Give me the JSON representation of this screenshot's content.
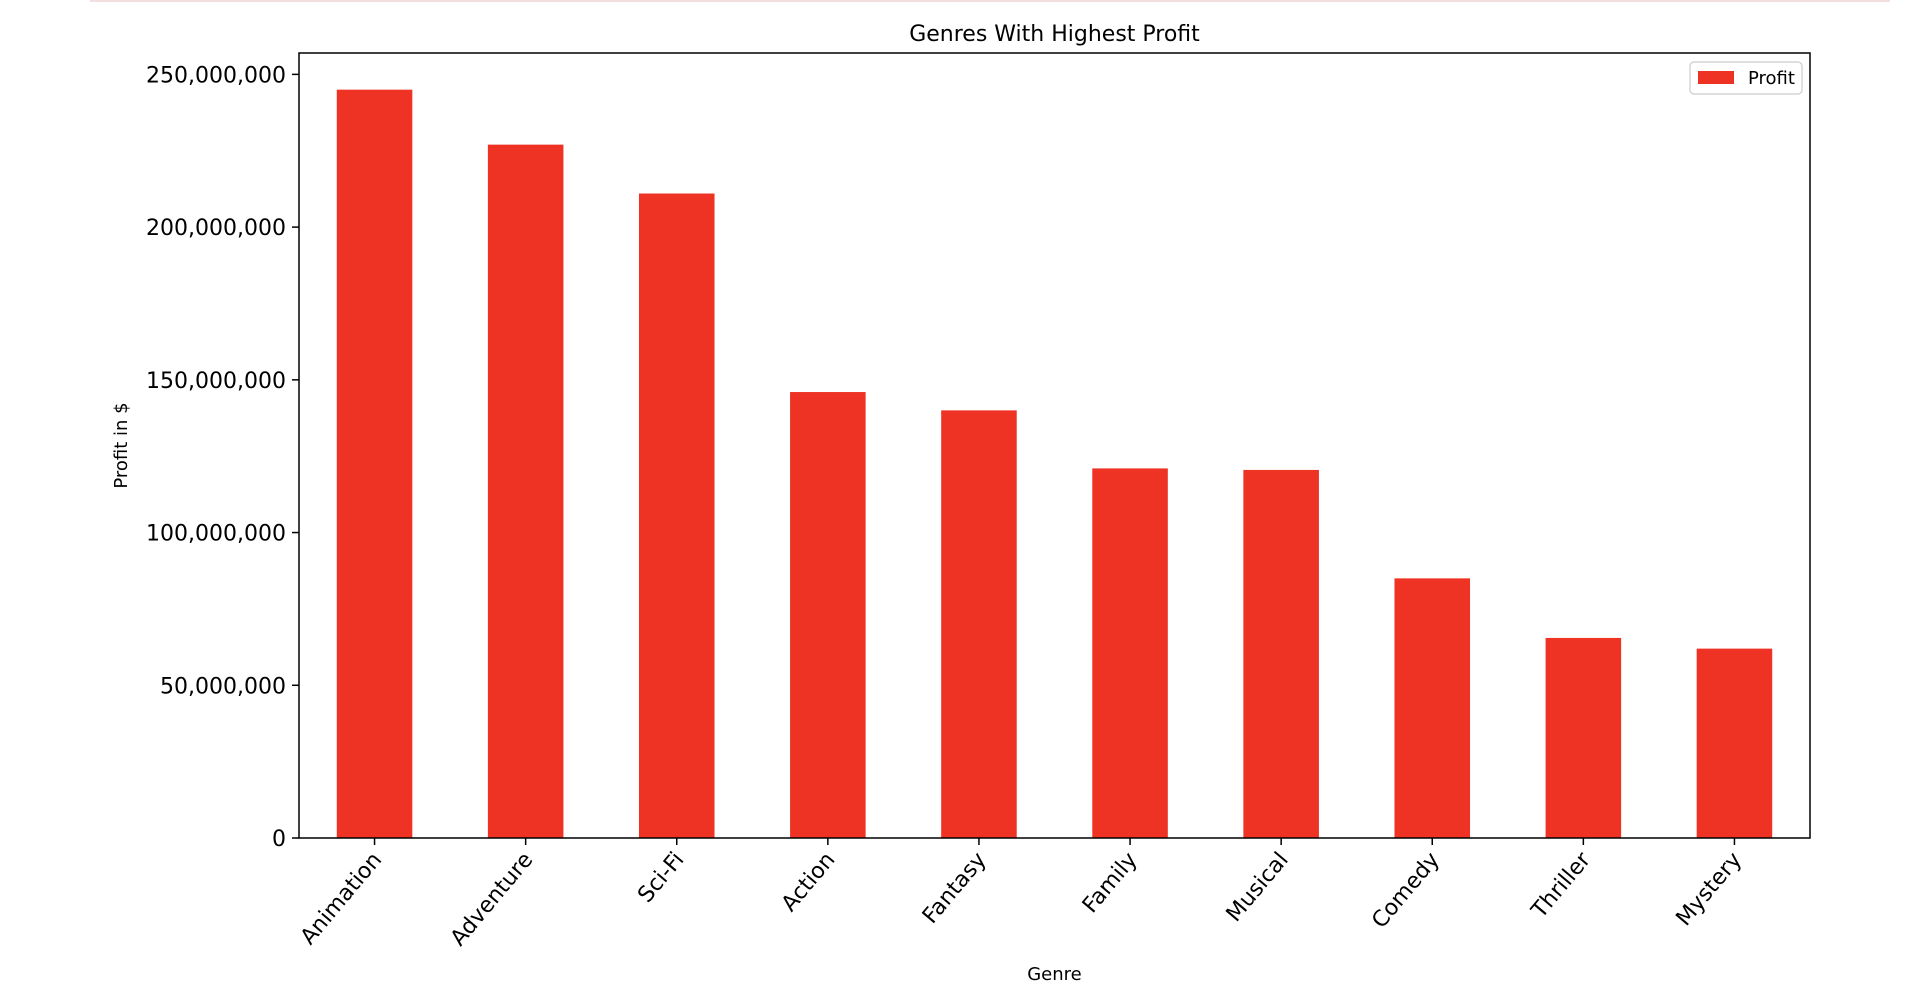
{
  "chart_data": {
    "type": "bar",
    "title": "Genres With Highest Profit",
    "xlabel": "Genre",
    "ylabel": "Profit in $",
    "categories": [
      "Animation",
      "Adventure",
      "Sci-Fi",
      "Action",
      "Fantasy",
      "Family",
      "Musical",
      "Comedy",
      "Thriller",
      "Mystery"
    ],
    "series": [
      {
        "name": "Profit",
        "color": "#ee3224",
        "values": [
          245000000,
          227000000,
          211000000,
          146000000,
          140000000,
          121000000,
          120500000,
          85000000,
          65500000,
          62000000
        ]
      }
    ],
    "ylim": [
      0,
      257000000
    ],
    "yticks": [
      0,
      50000000,
      100000000,
      150000000,
      200000000,
      250000000
    ],
    "ytick_labels": [
      "0",
      "50,000,000",
      "100,000,000",
      "150,000,000",
      "200,000,000",
      "250,000,000"
    ],
    "legend_position": "top-right",
    "grid": false
  }
}
